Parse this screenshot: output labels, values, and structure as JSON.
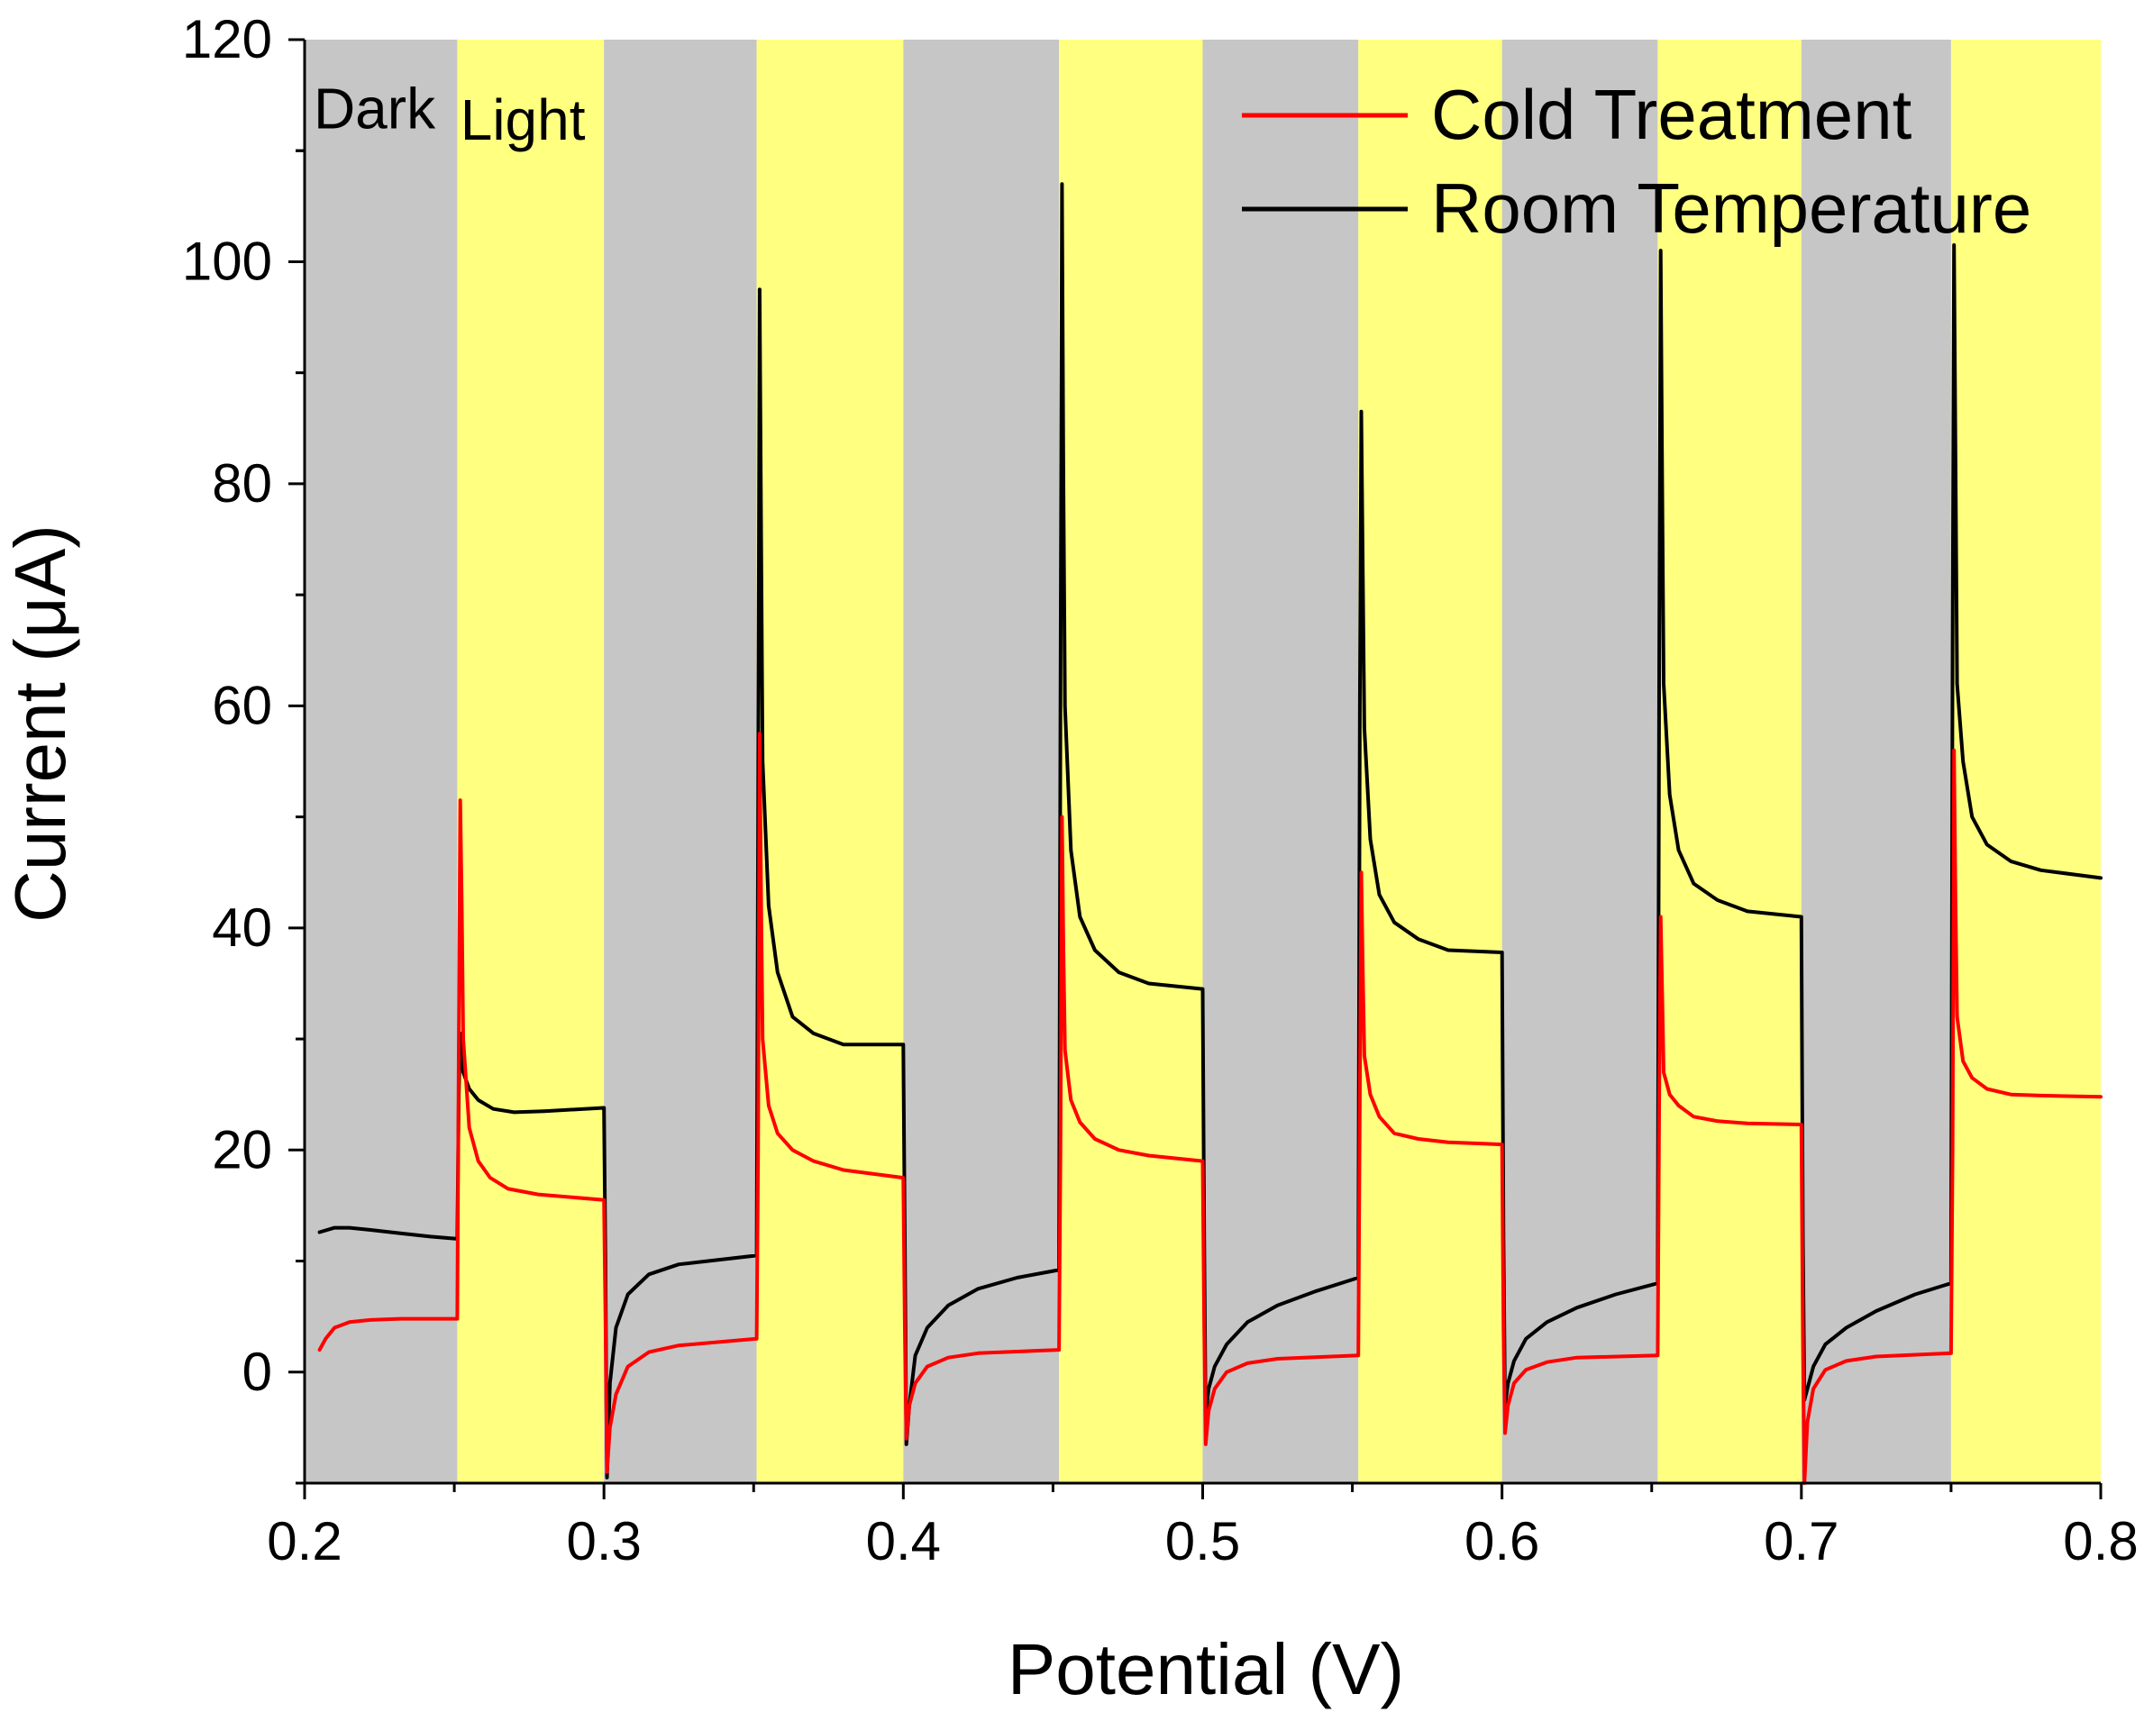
{
  "chart_data": {
    "type": "line",
    "title": "",
    "xlabel": "Potential (V)",
    "ylabel": "Current (μA)",
    "xlim": [
      0.2,
      0.8
    ],
    "ylim": [
      -10,
      120
    ],
    "xticks": [
      0.2,
      0.3,
      0.4,
      0.5,
      0.6,
      0.7,
      0.8
    ],
    "xtick_labels": [
      "0.2",
      "0.3",
      "0.4",
      "0.5",
      "0.6",
      "0.7",
      "0.8"
    ],
    "yticks": [
      0,
      20,
      40,
      60,
      80,
      100,
      120
    ],
    "ytick_labels": [
      "0",
      "20",
      "40",
      "60",
      "80",
      "100",
      "120"
    ],
    "grid": false,
    "legend_position": "top-right",
    "background_bands": [
      {
        "state": "dark",
        "x0": 0.2,
        "x1": 0.251
      },
      {
        "state": "light",
        "x0": 0.251,
        "x1": 0.3
      },
      {
        "state": "dark",
        "x0": 0.3,
        "x1": 0.351
      },
      {
        "state": "light",
        "x0": 0.351,
        "x1": 0.4
      },
      {
        "state": "dark",
        "x0": 0.4,
        "x1": 0.452
      },
      {
        "state": "light",
        "x0": 0.452,
        "x1": 0.5
      },
      {
        "state": "dark",
        "x0": 0.5,
        "x1": 0.552
      },
      {
        "state": "light",
        "x0": 0.552,
        "x1": 0.6
      },
      {
        "state": "dark",
        "x0": 0.6,
        "x1": 0.652
      },
      {
        "state": "light",
        "x0": 0.652,
        "x1": 0.7
      },
      {
        "state": "dark",
        "x0": 0.7,
        "x1": 0.75
      },
      {
        "state": "light",
        "x0": 0.75,
        "x1": 0.8
      }
    ],
    "band_colors": {
      "dark": "#c6c6c6",
      "light": "#ffff80"
    },
    "annotations": [
      {
        "text": "Dark",
        "x": 0.203,
        "y": 112
      },
      {
        "text": "Light",
        "x": 0.252,
        "y": 111
      }
    ],
    "series": [
      {
        "name": "Cold Treatment",
        "color": "#ff0000",
        "x": [
          0.205,
          0.207,
          0.21,
          0.215,
          0.222,
          0.232,
          0.251,
          0.2515,
          0.252,
          0.2525,
          0.253,
          0.255,
          0.258,
          0.262,
          0.268,
          0.278,
          0.3,
          0.3005,
          0.301,
          0.302,
          0.304,
          0.308,
          0.315,
          0.325,
          0.351,
          0.3515,
          0.352,
          0.3525,
          0.353,
          0.355,
          0.358,
          0.363,
          0.37,
          0.38,
          0.4,
          0.4005,
          0.401,
          0.402,
          0.404,
          0.408,
          0.415,
          0.425,
          0.452,
          0.4525,
          0.453,
          0.4535,
          0.454,
          0.456,
          0.459,
          0.464,
          0.472,
          0.482,
          0.5,
          0.5005,
          0.501,
          0.502,
          0.504,
          0.508,
          0.515,
          0.525,
          0.552,
          0.5525,
          0.553,
          0.5535,
          0.554,
          0.556,
          0.559,
          0.564,
          0.572,
          0.582,
          0.6,
          0.6005,
          0.601,
          0.602,
          0.604,
          0.608,
          0.615,
          0.625,
          0.652,
          0.6525,
          0.653,
          0.6535,
          0.654,
          0.656,
          0.659,
          0.664,
          0.672,
          0.682,
          0.7,
          0.7005,
          0.701,
          0.702,
          0.704,
          0.708,
          0.715,
          0.725,
          0.75,
          0.7505,
          0.751,
          0.7515,
          0.752,
          0.754,
          0.757,
          0.762,
          0.77,
          0.78,
          0.8
        ],
        "y": [
          2,
          3,
          4,
          4.5,
          4.7,
          4.8,
          4.8,
          30,
          51.5,
          42,
          30,
          22,
          19,
          17.5,
          16.5,
          16,
          15.5,
          5,
          -9,
          -5,
          -2,
          0.5,
          1.8,
          2.4,
          3,
          20,
          57.5,
          42,
          30,
          24,
          21.5,
          20,
          19,
          18.2,
          17.5,
          4,
          -6,
          -3,
          -1,
          0.5,
          1.3,
          1.7,
          2,
          20,
          50,
          38,
          29,
          24.5,
          22.5,
          21,
          20,
          19.5,
          19,
          4,
          -6.5,
          -3.5,
          -1.5,
          0,
          0.8,
          1.2,
          1.5,
          25,
          45,
          36,
          28.5,
          25,
          23,
          21.5,
          21,
          20.7,
          20.5,
          4,
          -5.5,
          -3,
          -1,
          0.2,
          0.9,
          1.3,
          1.5,
          25,
          41,
          34,
          27,
          25,
          24,
          23,
          22.6,
          22.4,
          22.3,
          3,
          -10,
          -4.5,
          -1.5,
          0.2,
          1,
          1.4,
          1.7,
          20,
          56,
          42,
          32,
          28,
          26.5,
          25.5,
          25,
          24.9,
          24.8
        ]
      },
      {
        "name": "Room Temperature",
        "color": "#000000",
        "x": [
          0.205,
          0.21,
          0.215,
          0.222,
          0.232,
          0.242,
          0.251,
          0.2515,
          0.252,
          0.2525,
          0.253,
          0.255,
          0.258,
          0.263,
          0.27,
          0.28,
          0.3,
          0.3005,
          0.301,
          0.302,
          0.304,
          0.308,
          0.315,
          0.325,
          0.351,
          0.3515,
          0.352,
          0.3525,
          0.353,
          0.355,
          0.358,
          0.363,
          0.37,
          0.38,
          0.4,
          0.4005,
          0.401,
          0.402,
          0.404,
          0.408,
          0.415,
          0.425,
          0.438,
          0.452,
          0.4525,
          0.453,
          0.4535,
          0.454,
          0.456,
          0.459,
          0.464,
          0.472,
          0.482,
          0.5,
          0.5005,
          0.501,
          0.502,
          0.504,
          0.508,
          0.515,
          0.525,
          0.538,
          0.552,
          0.5525,
          0.553,
          0.5535,
          0.554,
          0.556,
          0.559,
          0.564,
          0.572,
          0.582,
          0.6,
          0.6005,
          0.601,
          0.602,
          0.604,
          0.608,
          0.615,
          0.625,
          0.638,
          0.652,
          0.6525,
          0.653,
          0.6535,
          0.654,
          0.656,
          0.659,
          0.664,
          0.672,
          0.682,
          0.7,
          0.7005,
          0.701,
          0.702,
          0.704,
          0.708,
          0.715,
          0.725,
          0.738,
          0.75,
          0.7505,
          0.751,
          0.7515,
          0.752,
          0.754,
          0.757,
          0.762,
          0.77,
          0.78,
          0.8
        ],
        "y": [
          12.6,
          13,
          13,
          12.8,
          12.5,
          12.2,
          12,
          25,
          30.5,
          29,
          27,
          25.5,
          24.5,
          23.7,
          23.4,
          23.5,
          23.8,
          10,
          -9.5,
          -1,
          4,
          7,
          8.8,
          9.7,
          10.5,
          50,
          97.5,
          75,
          55,
          42,
          36,
          32,
          30.5,
          29.5,
          29.5,
          12,
          -6.5,
          -3,
          1.5,
          4,
          6,
          7.5,
          8.5,
          9.2,
          60,
          107,
          80,
          60,
          47,
          41,
          38,
          36,
          35,
          34.5,
          12,
          -4,
          -1.5,
          0.5,
          2.5,
          4.5,
          6,
          7.3,
          8.5,
          60,
          86.5,
          72,
          58,
          48,
          43,
          40.5,
          39,
          38,
          37.8,
          12,
          -3,
          -1,
          1,
          3,
          4.5,
          5.8,
          7,
          8,
          65,
          101,
          80,
          62,
          52,
          47,
          44,
          42.5,
          41.5,
          41,
          12,
          -2.5,
          -1.5,
          0.5,
          2.5,
          4,
          5.5,
          7,
          8,
          65,
          101.5,
          82,
          62,
          55,
          50,
          47.5,
          46,
          45.2,
          44.5
        ]
      }
    ]
  }
}
